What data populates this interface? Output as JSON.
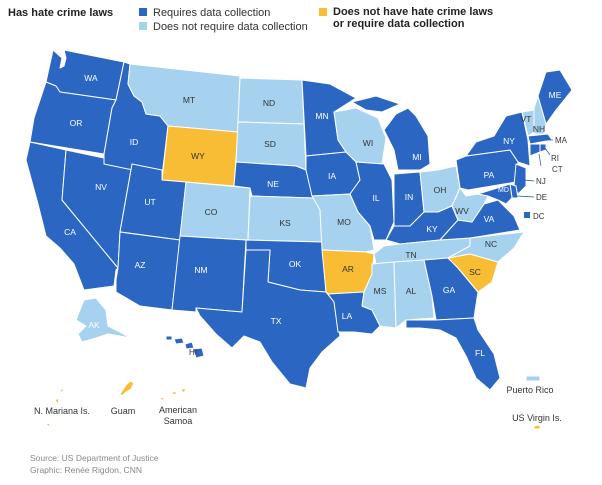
{
  "legend": {
    "title": "Has hate crime laws",
    "requires": "Requires data collection",
    "not_require": "Does not require data collection",
    "none_line1": "Does not have hate crime laws",
    "none_line2": "or require data collection"
  },
  "colors": {
    "requires": "#2a66c2",
    "not_require": "#a6d2f0",
    "none": "#f8bd34",
    "stroke": "#ffffff"
  },
  "states": {
    "WA": "requires",
    "OR": "requires",
    "CA": "requires",
    "ID": "requires",
    "NV": "requires",
    "MT": "not_require",
    "WY": "none",
    "UT": "requires",
    "AZ": "requires",
    "CO": "not_require",
    "NM": "requires",
    "ND": "not_require",
    "SD": "not_require",
    "NE": "requires",
    "KS": "not_require",
    "OK": "requires",
    "TX": "requires",
    "MN": "requires",
    "IA": "requires",
    "MO": "not_require",
    "AR": "none",
    "LA": "requires",
    "WI": "not_require",
    "IL": "requires",
    "MI": "requires",
    "IN": "requires",
    "OH": "not_require",
    "KY": "requires",
    "TN": "not_require",
    "MS": "not_require",
    "AL": "not_require",
    "GA": "requires",
    "FL": "requires",
    "SC": "none",
    "NC": "not_require",
    "VA": "requires",
    "WV": "not_require",
    "PA": "requires",
    "NY": "requires",
    "VT": "not_require",
    "NH": "not_require",
    "ME": "requires",
    "MA": "requires",
    "RI": "requires",
    "CT": "requires",
    "NJ": "requires",
    "DE": "requires",
    "MD": "requires",
    "AK": "not_require",
    "HI": "requires",
    "DC": "requires",
    "PR": "not_require",
    "MP": "none",
    "GU": "none",
    "AS": "none",
    "VI": "none"
  },
  "labels": {
    "WA": "WA",
    "OR": "OR",
    "CA": "CA",
    "ID": "ID",
    "NV": "NV",
    "MT": "MT",
    "WY": "WY",
    "UT": "UT",
    "AZ": "AZ",
    "CO": "CO",
    "NM": "NM",
    "ND": "ND",
    "SD": "SD",
    "NE": "NE",
    "KS": "KS",
    "OK": "OK",
    "TX": "TX",
    "MN": "MN",
    "IA": "IA",
    "MO": "MO",
    "AR": "AR",
    "LA": "LA",
    "WI": "WI",
    "IL": "IL",
    "MI": "MI",
    "IN": "IN",
    "OH": "OH",
    "KY": "KY",
    "TN": "TN",
    "MS": "MS",
    "AL": "AL",
    "GA": "GA",
    "FL": "FL",
    "SC": "SC",
    "NC": "NC",
    "VA": "VA",
    "WV": "WV",
    "PA": "PA",
    "NY": "NY",
    "VT": "VT",
    "NH": "NH",
    "ME": "ME",
    "MA": "MA",
    "RI": "RI",
    "CT": "CT",
    "NJ": "NJ",
    "DE": "DE",
    "MD": "MD",
    "AK": "AK",
    "HI": "HI",
    "DC": "DC"
  },
  "territories": {
    "mp": "N. Mariana Is.",
    "gu": "Guam",
    "as_line1": "American",
    "as_line2": "Samoa",
    "pr": "Puerto Rico",
    "vi": "US Virgin Is."
  },
  "footer": {
    "source": "Source: US Department of Justice",
    "graphic": "Graphic: Renée Rigdon, CNN"
  }
}
